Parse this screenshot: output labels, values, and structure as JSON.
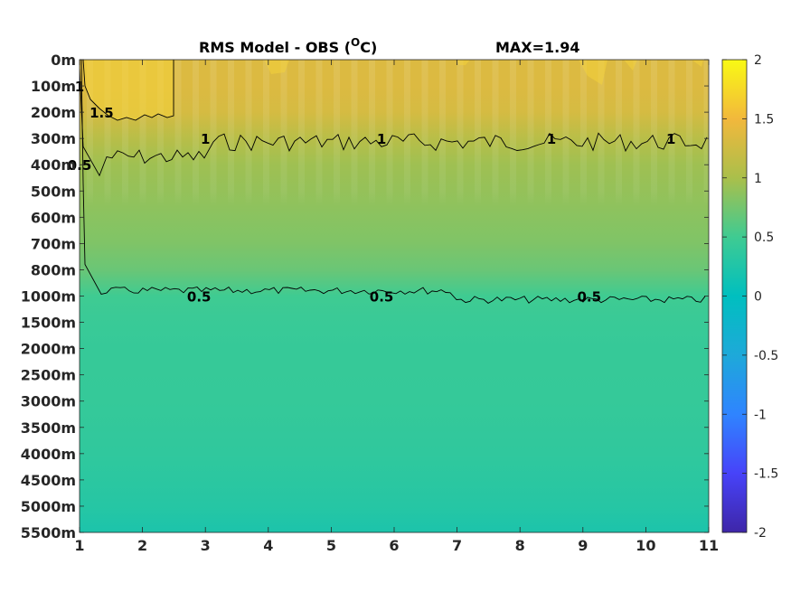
{
  "chart_data": {
    "type": "heatmap",
    "title": "RMS Model - OBS (",
    "title_superscript": "O",
    "title_suffix": "C)",
    "max_label": "MAX=1.94",
    "x_ticks": [
      "1",
      "2",
      "3",
      "4",
      "5",
      "6",
      "7",
      "8",
      "9",
      "10",
      "11"
    ],
    "x_range": [
      1,
      11
    ],
    "y_ticks": [
      "0m",
      "100m",
      "200m",
      "300m",
      "400m",
      "500m",
      "600m",
      "700m",
      "800m",
      "1000m",
      "1500m",
      "2000m",
      "2500m",
      "3000m",
      "3500m",
      "4000m",
      "4500m",
      "5000m",
      "5500m"
    ],
    "colorbar": {
      "range": [
        -2,
        2
      ],
      "ticks": [
        "2",
        "1.5",
        "1",
        "0.5",
        "0",
        "-0.5",
        "-1",
        "-1.5",
        "-2"
      ],
      "colormap": "parula",
      "colors": [
        "#3e26a8",
        "#4743f9",
        "#2f84ff",
        "#1ea9d9",
        "#00bfbf",
        "#3fcb92",
        "#aabf4b",
        "#f2b83c",
        "#f9fa14"
      ]
    },
    "depth_profile": [
      {
        "depth": "0m",
        "value": 1.35
      },
      {
        "depth": "100m",
        "value": 1.35
      },
      {
        "depth": "200m",
        "value": 1.3
      },
      {
        "depth": "300m",
        "value": 1.1
      },
      {
        "depth": "400m",
        "value": 0.95
      },
      {
        "depth": "500m",
        "value": 0.9
      },
      {
        "depth": "600m",
        "value": 0.85
      },
      {
        "depth": "700m",
        "value": 0.8
      },
      {
        "depth": "800m",
        "value": 0.7
      },
      {
        "depth": "1000m",
        "value": 0.5
      },
      {
        "depth": "1500m",
        "value": 0.45
      },
      {
        "depth": "2000m",
        "value": 0.43
      },
      {
        "depth": "3000m",
        "value": 0.42
      },
      {
        "depth": "4000m",
        "value": 0.38
      },
      {
        "depth": "5000m",
        "value": 0.3
      },
      {
        "depth": "5500m",
        "value": 0.22
      }
    ],
    "contour_labels": [
      {
        "text": "1.5",
        "x": 1.35,
        "depth": "200m"
      },
      {
        "text": "1",
        "x": 1.0,
        "depth": "100m"
      },
      {
        "text": "0.5",
        "x": 1.0,
        "depth": "400m"
      },
      {
        "text": "1",
        "x": 3.0,
        "depth": "300m"
      },
      {
        "text": "1",
        "x": 5.8,
        "depth": "300m"
      },
      {
        "text": "1",
        "x": 8.5,
        "depth": "300m"
      },
      {
        "text": "1",
        "x": 10.4,
        "depth": "300m"
      },
      {
        "text": "0.5",
        "x": 2.9,
        "depth": "1000m"
      },
      {
        "text": "0.5",
        "x": 5.8,
        "depth": "1000m"
      },
      {
        "text": "0.5",
        "x": 9.1,
        "depth": "1000m"
      }
    ]
  }
}
